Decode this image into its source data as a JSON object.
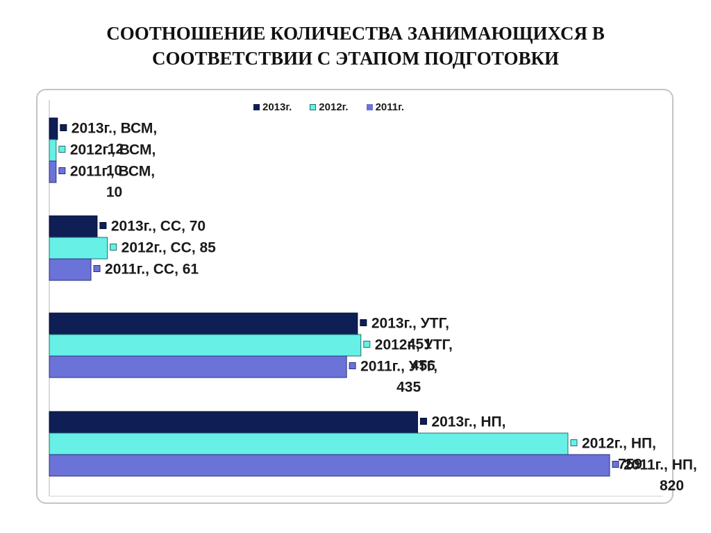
{
  "title_line1": "СООТНОШЕНИЕ КОЛИЧЕСТВА ЗАНИМАЮЩИХСЯ  В",
  "title_line2": "СООТВЕТСТВИИ С ЭТАПОМ ПОДГОТОВКИ",
  "colors": {
    "2013г.": "#0f1f55",
    "2012г.": "#66f0e6",
    "2011г.": "#6b72d8"
  },
  "chart_data": {
    "type": "bar",
    "orientation": "horizontal",
    "categories": [
      "ВСМ",
      "СС",
      "УТГ",
      "НП"
    ],
    "series": [
      {
        "name": "2013г.",
        "values": [
          12,
          70,
          451,
          539
        ]
      },
      {
        "name": "2012г.",
        "values": [
          10,
          85,
          456,
          759
        ]
      },
      {
        "name": "2011г.",
        "values": [
          10,
          61,
          435,
          820
        ]
      }
    ],
    "data_labels": [
      [
        "2013г., ВСМ, 12",
        "2012г., ВСМ, 10",
        "2011г., ВСМ, 10"
      ],
      [
        "2013г., СС, 70",
        "2012г., СС, 85",
        "2011г., СС, 61"
      ],
      [
        "2013г., УТГ, 451",
        "2012г., УТГ, 456",
        "2011г., УТГ, 435"
      ],
      [
        "2013г., НП, 539",
        "2012г., НП, 759",
        "2011г., НП, 820"
      ]
    ],
    "legend": [
      "2013г.",
      "2012г.",
      "2011г."
    ],
    "legend_position": "top",
    "xlim": [
      0,
      820
    ],
    "grid": false
  }
}
